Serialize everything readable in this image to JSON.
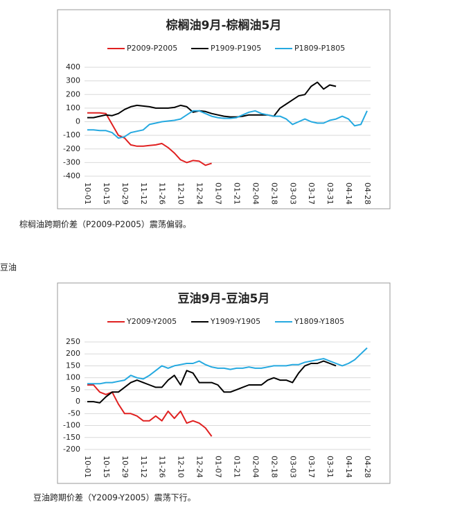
{
  "chart_data": [
    {
      "type": "line",
      "title": "棕榈油9月-棕榈油5月",
      "categories": [
        "10-01",
        null,
        null,
        "10-15",
        null,
        null,
        "10-29",
        null,
        null,
        "11-12",
        null,
        null,
        "11-26",
        null,
        null,
        "12-10",
        null,
        null,
        "12-24",
        null,
        null,
        "01-07",
        null,
        null,
        "01-21",
        null,
        null,
        "02-04",
        null,
        null,
        "02-18",
        null,
        null,
        "03-03",
        null,
        null,
        "03-17",
        null,
        null,
        "03-31",
        null,
        null,
        "04-14",
        null,
        null,
        "04-28"
      ],
      "ylim": [
        -400,
        400
      ],
      "yticks": [
        -400,
        -300,
        -200,
        -100,
        0,
        100,
        200,
        300,
        400
      ],
      "grid": true,
      "legend": "top",
      "series": [
        {
          "name": "P2009-P2005",
          "color": "#e02020",
          "values": [
            65,
            65,
            65,
            60,
            -20,
            -100,
            -120,
            -170,
            -180,
            -180,
            -175,
            -170,
            -160,
            -190,
            -230,
            -280,
            -300,
            -285,
            -290,
            -320,
            -305,
            null,
            null,
            null,
            null,
            null,
            null,
            null,
            null,
            null,
            null,
            null,
            null,
            null,
            null,
            null,
            null,
            null,
            null,
            null,
            null,
            null,
            null,
            null,
            null,
            null
          ]
        },
        {
          "name": "P1909-P1905",
          "color": "#000000",
          "values": [
            30,
            30,
            40,
            50,
            45,
            60,
            90,
            110,
            120,
            115,
            110,
            100,
            100,
            100,
            105,
            120,
            110,
            70,
            80,
            75,
            60,
            50,
            40,
            35,
            35,
            40,
            50,
            50,
            50,
            50,
            40,
            100,
            130,
            160,
            190,
            200,
            260,
            290,
            240,
            270,
            260,
            null,
            null,
            null,
            null,
            null
          ]
        },
        {
          "name": "P1809-P1805",
          "color": "#25a9e0",
          "values": [
            -60,
            -60,
            -65,
            -65,
            -80,
            -120,
            -110,
            -80,
            -70,
            -60,
            -20,
            -10,
            0,
            5,
            10,
            20,
            50,
            80,
            80,
            60,
            40,
            30,
            25,
            25,
            30,
            50,
            70,
            80,
            60,
            50,
            40,
            40,
            20,
            -20,
            0,
            20,
            0,
            -10,
            -10,
            10,
            20,
            40,
            20,
            -30,
            -20,
            80
          ]
        }
      ]
    },
    {
      "type": "line",
      "title": "豆油9月-豆油5月",
      "categories": [
        "10-01",
        null,
        null,
        "10-15",
        null,
        null,
        "10-29",
        null,
        null,
        "11-12",
        null,
        null,
        "11-26",
        null,
        null,
        "12-10",
        null,
        null,
        "12-24",
        null,
        null,
        "01-07",
        null,
        null,
        "01-21",
        null,
        null,
        "02-04",
        null,
        null,
        "02-18",
        null,
        null,
        "03-03",
        null,
        null,
        "03-17",
        null,
        null,
        "03-31",
        null,
        null,
        "04-14",
        null,
        null,
        "04-28"
      ],
      "ylim": [
        -200,
        250
      ],
      "yticks": [
        -200,
        -150,
        -100,
        -50,
        0,
        50,
        100,
        150,
        200,
        250
      ],
      "grid": true,
      "legend": "top",
      "series": [
        {
          "name": "Y2009-Y2005",
          "color": "#e02020",
          "values": [
            70,
            70,
            40,
            30,
            40,
            -10,
            -50,
            -50,
            -60,
            -80,
            -80,
            -60,
            -80,
            -40,
            -70,
            -40,
            -90,
            -80,
            -90,
            -110,
            -145,
            null,
            null,
            null,
            null,
            null,
            null,
            null,
            null,
            null,
            null,
            null,
            null,
            null,
            null,
            null,
            null,
            null,
            null,
            null,
            null,
            null,
            null,
            null,
            null,
            null
          ]
        },
        {
          "name": "Y1909-Y1905",
          "color": "#000000",
          "values": [
            0,
            0,
            -5,
            20,
            40,
            40,
            60,
            80,
            90,
            80,
            70,
            60,
            60,
            90,
            110,
            70,
            130,
            120,
            80,
            80,
            80,
            70,
            40,
            40,
            50,
            60,
            70,
            70,
            70,
            90,
            100,
            90,
            90,
            80,
            120,
            150,
            160,
            160,
            170,
            160,
            150,
            null,
            null,
            null,
            null,
            null
          ]
        },
        {
          "name": "Y1809-Y1805",
          "color": "#25a9e0",
          "values": [
            75,
            75,
            75,
            80,
            80,
            85,
            90,
            110,
            100,
            95,
            110,
            130,
            150,
            140,
            150,
            155,
            160,
            160,
            170,
            155,
            145,
            140,
            140,
            135,
            140,
            140,
            145,
            140,
            140,
            145,
            150,
            150,
            150,
            155,
            155,
            165,
            170,
            175,
            180,
            170,
            160,
            150,
            160,
            175,
            200,
            225
          ]
        }
      ]
    }
  ],
  "document": {
    "caption_1": "棕榈油跨期价差（P2009-P2005）震荡偏弱。",
    "heading": "豆油",
    "caption_2": "豆油跨期价差（Y2009-Y2005）震荡下行。"
  }
}
